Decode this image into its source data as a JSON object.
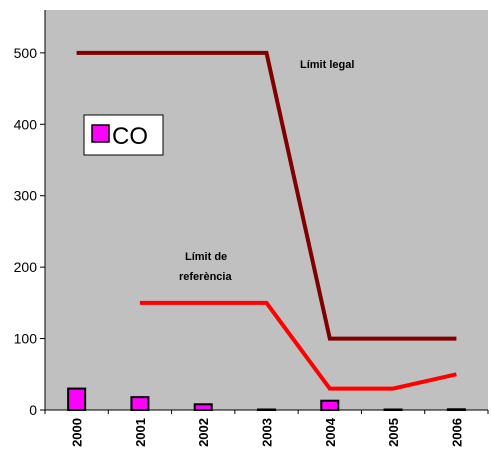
{
  "chart_data": {
    "type": "bar",
    "categories": [
      "2000",
      "2001",
      "2002",
      "2003",
      "2004",
      "2005",
      "2006"
    ],
    "series": [
      {
        "name": "CO",
        "type": "bar",
        "values": [
          30,
          18,
          8,
          0,
          13,
          0,
          1
        ]
      },
      {
        "type": "line",
        "values": [
          500,
          500,
          500,
          500,
          100,
          100,
          100
        ]
      },
      {
        "type": "line",
        "values": [
          null,
          150,
          150,
          150,
          30,
          30,
          50
        ]
      }
    ],
    "annotations": {
      "limit_legal": "Límit legal",
      "limit_ref_line1": "Límit de",
      "limit_ref_line2": "referència"
    },
    "yticks": [
      0,
      100,
      200,
      300,
      400,
      500
    ],
    "ylim": [
      0,
      560
    ],
    "grid": false,
    "legend_position": "left",
    "colors": {
      "plot_bg": "#c0c0c0",
      "bar": "#ff00ff",
      "limit_legal": "#800000",
      "limit_ref": "#ff0000"
    }
  }
}
